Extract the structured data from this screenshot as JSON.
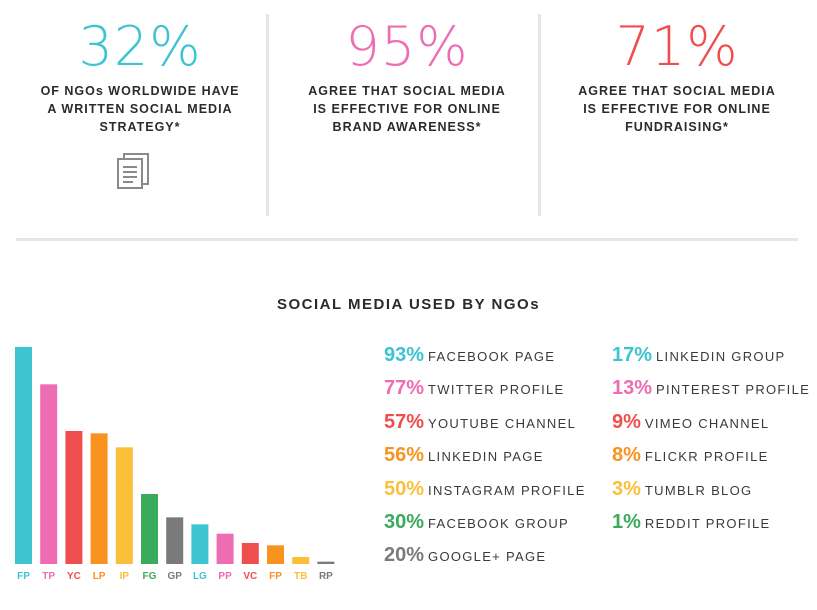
{
  "stats": [
    {
      "value": "32%",
      "text": "OF NGOs WORLDWIDE HAVE\nA WRITTEN SOCIAL MEDIA\nSTRATEGY*",
      "color": "#3cc4d2"
    },
    {
      "value": "95%",
      "text": "AGREE THAT SOCIAL MEDIA\nIS EFFECTIVE FOR ONLINE\nBRAND AWARENESS*",
      "color": "#ee6cb4"
    },
    {
      "value": "71%",
      "text": "AGREE THAT SOCIAL MEDIA\nIS EFFECTIVE FOR ONLINE\nFUNDRAISING*",
      "color": "#ef4e4e"
    }
  ],
  "icon": "document-icon",
  "chart_data": {
    "type": "bar",
    "title": "SOCIAL MEDIA USED BY NGOs",
    "categories": [
      "FP",
      "TP",
      "YC",
      "LP",
      "IP",
      "FG",
      "GP",
      "LG",
      "PP",
      "VC",
      "FP",
      "TB",
      "RP"
    ],
    "values": [
      93,
      77,
      57,
      56,
      50,
      30,
      20,
      17,
      13,
      9,
      8,
      3,
      1
    ],
    "colors": [
      "#3cc4d2",
      "#ee6cb4",
      "#ef4e4e",
      "#f7931e",
      "#fbbf3a",
      "#3aaa5c",
      "#7a7a7a",
      "#3cc4d2",
      "#ee6cb4",
      "#ef4e4e",
      "#f7931e",
      "#fbbf3a",
      "#7a7a7a"
    ],
    "ylim": [
      0,
      100
    ]
  },
  "legend": {
    "column1": [
      {
        "pct": "93%",
        "name": "FACEBOOK PAGE",
        "color": "#3cc4d2"
      },
      {
        "pct": "77%",
        "name": "TWITTER PROFILE",
        "color": "#ee6cb4"
      },
      {
        "pct": "57%",
        "name": "YOUTUBE CHANNEL",
        "color": "#ef4e4e"
      },
      {
        "pct": "56%",
        "name": "LINKEDIN PAGE",
        "color": "#f7931e"
      },
      {
        "pct": "50%",
        "name": "INSTAGRAM PROFILE",
        "color": "#fbbf3a"
      },
      {
        "pct": "30%",
        "name": "FACEBOOK GROUP",
        "color": "#3aaa5c"
      },
      {
        "pct": "20%",
        "name": "GOOGLE+ PAGE",
        "color": "#7a7a7a"
      }
    ],
    "column2": [
      {
        "pct": "17%",
        "name": "LINKEDIN GROUP",
        "color": "#3cc4d2"
      },
      {
        "pct": "13%",
        "name": "PINTEREST PROFILE",
        "color": "#ee6cb4"
      },
      {
        "pct": "9%",
        "name": "VIMEO CHANNEL",
        "color": "#ef4e4e"
      },
      {
        "pct": "8%",
        "name": "FLICKR PROFILE",
        "color": "#f7931e"
      },
      {
        "pct": "3%",
        "name": "TUMBLR BLOG",
        "color": "#fbbf3a"
      },
      {
        "pct": "1%",
        "name": "REDDIT PROFILE",
        "color": "#3aaa5c"
      }
    ]
  }
}
